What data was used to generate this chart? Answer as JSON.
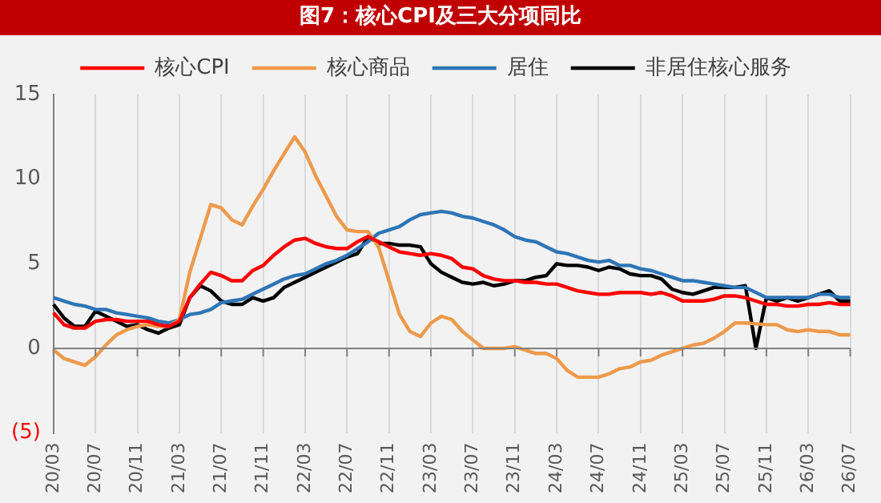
{
  "chart_data": {
    "type": "line",
    "title": "图7：核心CPI及三大分项同比",
    "categories": [
      "20/03",
      null,
      null,
      null,
      "20/07",
      null,
      null,
      null,
      "20/11",
      null,
      null,
      null,
      "21/03",
      null,
      null,
      null,
      "21/07",
      null,
      null,
      null,
      "21/11",
      null,
      null,
      null,
      "22/03",
      null,
      null,
      null,
      "22/07",
      null,
      null,
      null,
      "22/11",
      null,
      null,
      null,
      "23/03",
      null,
      null,
      null,
      "23/07",
      null,
      null,
      null,
      "23/11",
      null,
      null,
      null,
      "24/03",
      null,
      null,
      null,
      "24/07",
      null,
      null,
      null,
      "24/11",
      null,
      null,
      null,
      "25/03",
      null,
      null,
      null,
      "25/07",
      null,
      null,
      null,
      "25/11",
      null,
      null,
      null,
      "26/03",
      null,
      null,
      null,
      "26/07"
    ],
    "series": [
      {
        "name": "核心CPI",
        "color": "#ff0000",
        "values": [
          2.1,
          1.4,
          1.2,
          1.2,
          1.6,
          1.7,
          1.7,
          1.6,
          1.6,
          1.6,
          1.4,
          1.3,
          1.6,
          3.0,
          3.8,
          4.5,
          4.3,
          4.0,
          4.0,
          4.6,
          4.9,
          5.5,
          6.0,
          6.4,
          6.5,
          6.2,
          6.0,
          5.9,
          5.9,
          6.3,
          6.6,
          6.3,
          6.0,
          5.7,
          5.6,
          5.5,
          5.6,
          5.5,
          5.3,
          4.8,
          4.7,
          4.3,
          4.1,
          4.0,
          4.0,
          3.9,
          3.9,
          3.8,
          3.8,
          3.6,
          3.4,
          3.3,
          3.2,
          3.2,
          3.3,
          3.3,
          3.3,
          3.2,
          3.3,
          3.1,
          2.8,
          2.8,
          2.8,
          2.9,
          3.1,
          3.1,
          3.0,
          null,
          2.6,
          2.6,
          2.5,
          2.5,
          2.6,
          2.6,
          2.7,
          2.6,
          2.6
        ]
      },
      {
        "name": "核心商品",
        "color": "#ed9a4c",
        "values": [
          -0.1,
          -0.6,
          -0.8,
          -1.0,
          -0.5,
          0.2,
          0.8,
          1.1,
          1.3,
          1.4,
          1.3,
          1.3,
          1.7,
          4.5,
          6.5,
          8.5,
          8.3,
          7.6,
          7.3,
          8.4,
          9.4,
          10.5,
          11.5,
          12.5,
          11.6,
          10.2,
          9.0,
          7.8,
          7.0,
          6.9,
          6.9,
          6.0,
          4.0,
          2.0,
          1.0,
          0.7,
          1.5,
          1.9,
          1.7,
          1.0,
          0.5,
          0.0,
          0.0,
          0.0,
          0.1,
          -0.1,
          -0.3,
          -0.3,
          -0.6,
          -1.3,
          -1.7,
          -1.7,
          -1.7,
          -1.5,
          -1.2,
          -1.1,
          -0.8,
          -0.7,
          -0.4,
          -0.2,
          0.0,
          0.2,
          0.3,
          0.6,
          1.0,
          1.5,
          1.5,
          null,
          1.4,
          1.4,
          1.1,
          1.0,
          1.1,
          1.0,
          1.0,
          0.8,
          0.8
        ]
      },
      {
        "name": "居住",
        "color": "#2e75b6",
        "values": [
          3.0,
          2.8,
          2.6,
          2.5,
          2.3,
          2.3,
          2.1,
          2.0,
          1.9,
          1.8,
          1.6,
          1.5,
          1.7,
          2.0,
          2.1,
          2.3,
          2.7,
          2.8,
          2.9,
          3.2,
          3.5,
          3.8,
          4.1,
          4.3,
          4.4,
          4.7,
          5.0,
          5.2,
          5.5,
          5.9,
          6.3,
          6.8,
          7.0,
          7.2,
          7.6,
          7.9,
          8.0,
          8.1,
          8.0,
          7.8,
          7.7,
          7.5,
          7.3,
          7.0,
          6.6,
          6.4,
          6.3,
          6.0,
          5.7,
          5.6,
          5.4,
          5.2,
          5.1,
          5.2,
          4.9,
          4.9,
          4.7,
          4.6,
          4.4,
          4.2,
          4.0,
          4.0,
          3.9,
          3.8,
          3.7,
          3.6,
          3.6,
          null,
          3.0,
          3.0,
          3.0,
          3.0,
          3.0,
          3.2,
          3.2,
          3.0,
          3.0
        ]
      },
      {
        "name": "非居住核心服务",
        "color": "#000000",
        "values": [
          2.6,
          1.8,
          1.3,
          1.3,
          2.2,
          1.9,
          1.6,
          1.3,
          1.4,
          1.1,
          0.9,
          1.2,
          1.4,
          3.0,
          3.7,
          3.4,
          2.8,
          2.6,
          2.6,
          3.0,
          2.8,
          3.0,
          3.6,
          3.9,
          4.2,
          4.5,
          4.8,
          5.1,
          5.4,
          5.6,
          6.6,
          6.2,
          6.2,
          6.1,
          6.1,
          6.0,
          5.0,
          4.5,
          4.2,
          3.9,
          3.8,
          3.9,
          3.7,
          3.8,
          4.0,
          4.0,
          4.2,
          4.3,
          5.0,
          4.9,
          4.9,
          4.8,
          4.6,
          4.8,
          4.7,
          4.4,
          4.3,
          4.3,
          4.1,
          3.5,
          3.3,
          3.2,
          3.4,
          3.6,
          3.6,
          3.6,
          3.7,
          0,
          3.0,
          2.8,
          3.0,
          2.8,
          3.0,
          3.2,
          3.4,
          2.8,
          2.8
        ]
      }
    ],
    "ylim": [
      -5,
      15
    ],
    "yticks": [
      {
        "value": -5,
        "label": "(5)"
      },
      0,
      5,
      10,
      15
    ],
    "grid": "x",
    "legend": "top",
    "marker": "none",
    "line_style": "solid"
  }
}
